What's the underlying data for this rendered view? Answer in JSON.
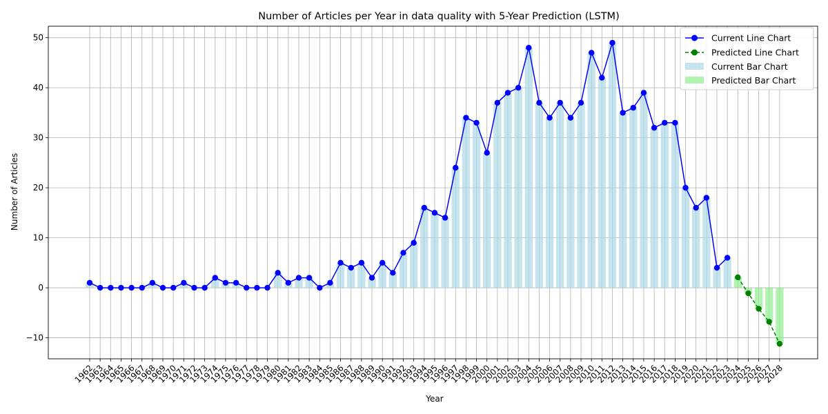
{
  "chart_data": {
    "type": "bar",
    "title": "Number of Articles per Year in data quality with 5-Year Prediction (LSTM)",
    "xlabel": "Year",
    "ylabel": "Number of Articles",
    "ylim": [
      -14.2,
      52.3
    ],
    "yticks": [
      -10,
      0,
      10,
      20,
      30,
      40,
      50
    ],
    "grid": true,
    "legend_position": "top-right",
    "colors": {
      "current_line": "#0000ff",
      "predicted_line": "#008000",
      "current_bar": "#add8e6",
      "predicted_bar": "#90ee90",
      "grid": "#b0b0b0"
    },
    "legend": {
      "current_line": "Current Line Chart",
      "predicted_line": "Predicted Line Chart",
      "current_bar": "Current Bar Chart",
      "predicted_bar": "Predicted Bar Chart"
    },
    "current": {
      "years": [
        1962,
        1963,
        1964,
        1965,
        1966,
        1967,
        1968,
        1969,
        1970,
        1971,
        1972,
        1973,
        1974,
        1975,
        1976,
        1977,
        1978,
        1979,
        1980,
        1981,
        1982,
        1983,
        1984,
        1985,
        1986,
        1987,
        1988,
        1989,
        1990,
        1991,
        1992,
        1993,
        1994,
        1995,
        1996,
        1997,
        1998,
        1999,
        2000,
        2001,
        2002,
        2003,
        2004,
        2005,
        2006,
        2007,
        2008,
        2009,
        2010,
        2011,
        2012,
        2013,
        2014,
        2015,
        2016,
        2017,
        2018,
        2019,
        2020,
        2021,
        2022,
        2023
      ],
      "values": [
        1,
        0,
        0,
        0,
        0,
        0,
        1,
        0,
        0,
        1,
        0,
        0,
        2,
        1,
        1,
        0,
        0,
        0,
        3,
        1,
        2,
        2,
        0,
        1,
        5,
        4,
        5,
        2,
        5,
        3,
        7,
        9,
        16,
        15,
        14,
        24,
        34,
        33,
        27,
        37,
        39,
        40,
        48,
        37,
        34,
        37,
        34,
        37,
        47,
        42,
        49,
        35,
        36,
        39,
        32,
        33,
        33,
        20,
        16,
        18,
        4,
        6
      ]
    },
    "predicted": {
      "years": [
        2024,
        2025,
        2026,
        2027,
        2028
      ],
      "values": [
        2.1,
        -1.1,
        -4.2,
        -6.8,
        -11.2
      ]
    }
  }
}
